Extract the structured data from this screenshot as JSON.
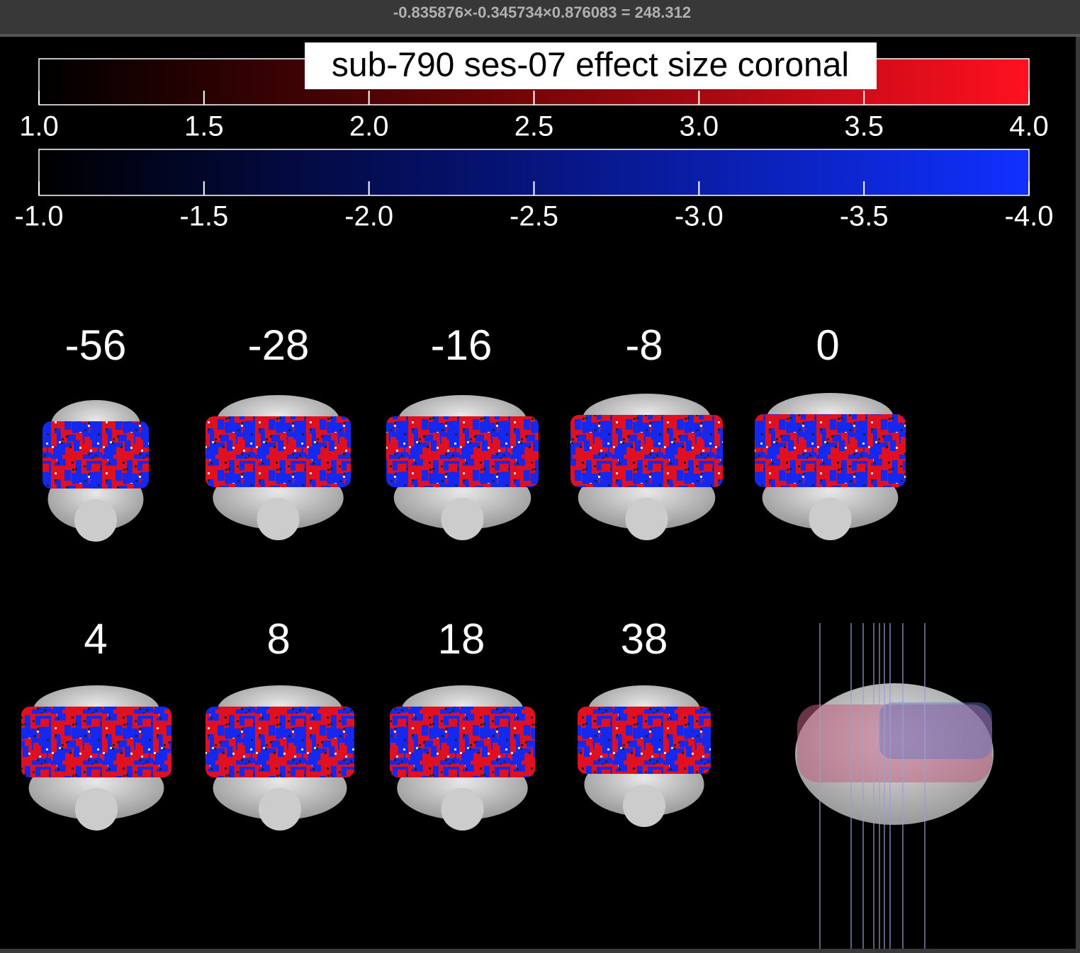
{
  "window": {
    "title": "-0.835876×-0.345734×0.876083 =  248.312"
  },
  "colorbars": {
    "title": "sub-790 ses-07 effect size coronal",
    "positive": {
      "ticks": [
        "1.0",
        "1.5",
        "2.0",
        "2.5",
        "3.0",
        "3.5",
        "4.0"
      ]
    },
    "negative": {
      "ticks": [
        "-1.0",
        "-1.5",
        "-2.0",
        "-2.5",
        "-3.0",
        "-3.5",
        "-4.0"
      ]
    }
  },
  "slices": {
    "labels": [
      "-56",
      "-28",
      "-16",
      "-8",
      "0",
      "4",
      "8",
      "18",
      "38"
    ]
  }
}
